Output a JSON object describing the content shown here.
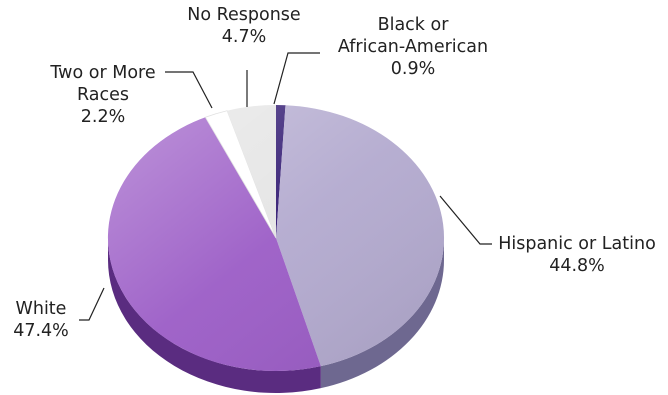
{
  "chart_data": {
    "type": "pie",
    "title": "",
    "slices": [
      {
        "name_lines": [
          "Black or",
          "African-American"
        ],
        "value_label": "0.9%",
        "value": 0.9,
        "colors": {
          "top": "#2e1670",
          "side": "#1a0c45"
        }
      },
      {
        "name_lines": [
          "Hispanic or Latino"
        ],
        "value_label": "44.8%",
        "value": 44.8,
        "colors": {
          "top": "#b3aacf",
          "side": "#6e6890"
        }
      },
      {
        "name_lines": [
          "White"
        ],
        "value_label": "47.4%",
        "value": 47.4,
        "colors": {
          "top": "#9b5cc6",
          "side": "#5a2c80"
        }
      },
      {
        "name_lines": [
          "Two or More",
          "Races"
        ],
        "value_label": "2.2%",
        "value": 2.2,
        "colors": {
          "top": "#ffffff",
          "side": "#c8c8c8"
        }
      },
      {
        "name_lines": [
          "No Response"
        ],
        "value_label": "4.7%",
        "value": 4.7,
        "colors": {
          "top": "#e4e4e4",
          "side": "#a8a8a8"
        }
      }
    ],
    "style": {
      "three_d": true,
      "legend": "none",
      "labels": "outside-with-leader-lines"
    }
  }
}
